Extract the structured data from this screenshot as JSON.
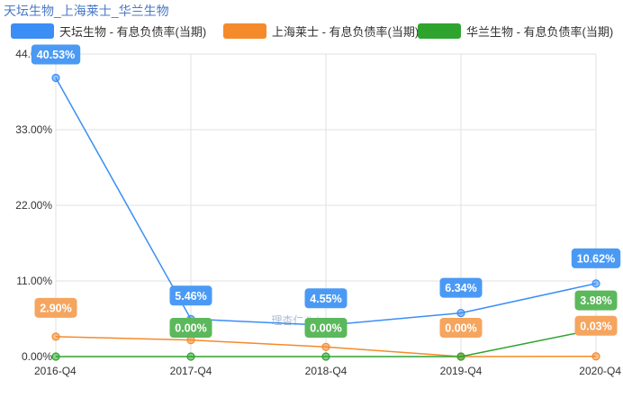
{
  "chart_data": {
    "type": "line",
    "title": "天坛生物_上海莱士_华兰生物",
    "xlabel": "",
    "ylabel": "",
    "categories": [
      "2016-Q4",
      "2017-Q4",
      "2018-Q4",
      "2019-Q4",
      "2020-Q4"
    ],
    "ylim": [
      0,
      44
    ],
    "yticks": [
      "0.00%",
      "11.00%",
      "22.00%",
      "33.00%",
      "44.00%"
    ],
    "grid": true,
    "legend_position": "top",
    "series": [
      {
        "name": "天坛生物 - 有息负债率(当期)",
        "color": "#3a8ef6",
        "label_bg": "#4a9af5",
        "values": [
          40.53,
          5.46,
          4.55,
          6.34,
          10.62
        ],
        "labels": [
          "40.53%",
          "5.46%",
          "4.55%",
          "6.34%",
          "10.62%"
        ]
      },
      {
        "name": "上海莱士 - 有息负债率(当期)",
        "color": "#f58a2a",
        "label_bg": "#f5a55e",
        "values": [
          2.9,
          2.4,
          1.4,
          0.0,
          0.03
        ],
        "labels": [
          "2.90%",
          "",
          "",
          "0.00%",
          "0.03%"
        ]
      },
      {
        "name": "华兰生物 - 有息负债率(当期)",
        "color": "#2ea42e",
        "label_bg": "#5cb85c",
        "values": [
          0.0,
          0.0,
          0.0,
          0.0,
          3.98
        ],
        "labels": [
          "",
          "0.00%",
          "0.00%",
          "",
          "3.98%"
        ]
      }
    ],
    "watermark": "理杏仁 lixinger"
  }
}
